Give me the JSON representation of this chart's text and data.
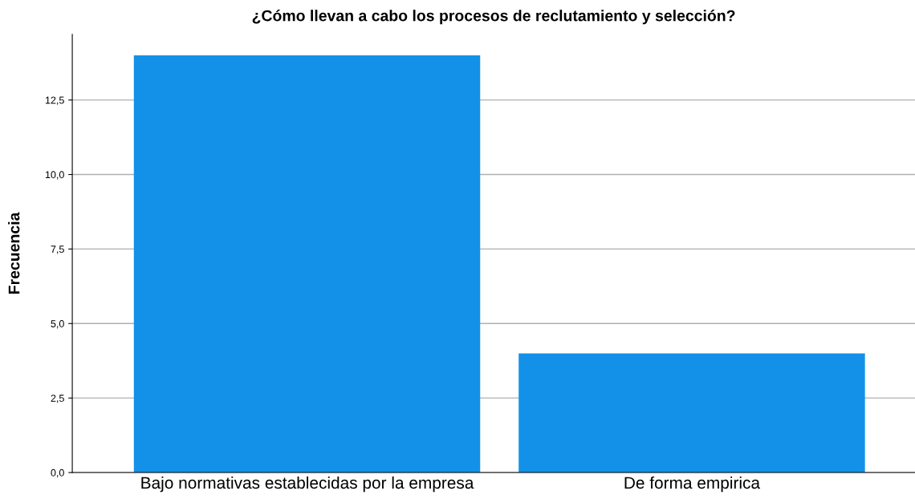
{
  "chart_data": {
    "type": "bar",
    "title": "¿Cómo llevan a cabo los procesos de reclutamiento y selección?",
    "ylabel": "Frecuencia",
    "categories": [
      "Bajo normativas establecidas por la empresa",
      "De forma empirica"
    ],
    "values": [
      14,
      4
    ],
    "color": "#1391e8",
    "ylim": [
      0,
      14.7
    ],
    "yticks": [
      {
        "value": 0,
        "label": "0,0"
      },
      {
        "value": 2.5,
        "label": "2,5"
      },
      {
        "value": 5,
        "label": "5,0"
      },
      {
        "value": 7.5,
        "label": "7,5"
      },
      {
        "value": 10,
        "label": "10,0"
      },
      {
        "value": 12.5,
        "label": "12,5"
      }
    ],
    "grid": "y",
    "legend": false
  }
}
